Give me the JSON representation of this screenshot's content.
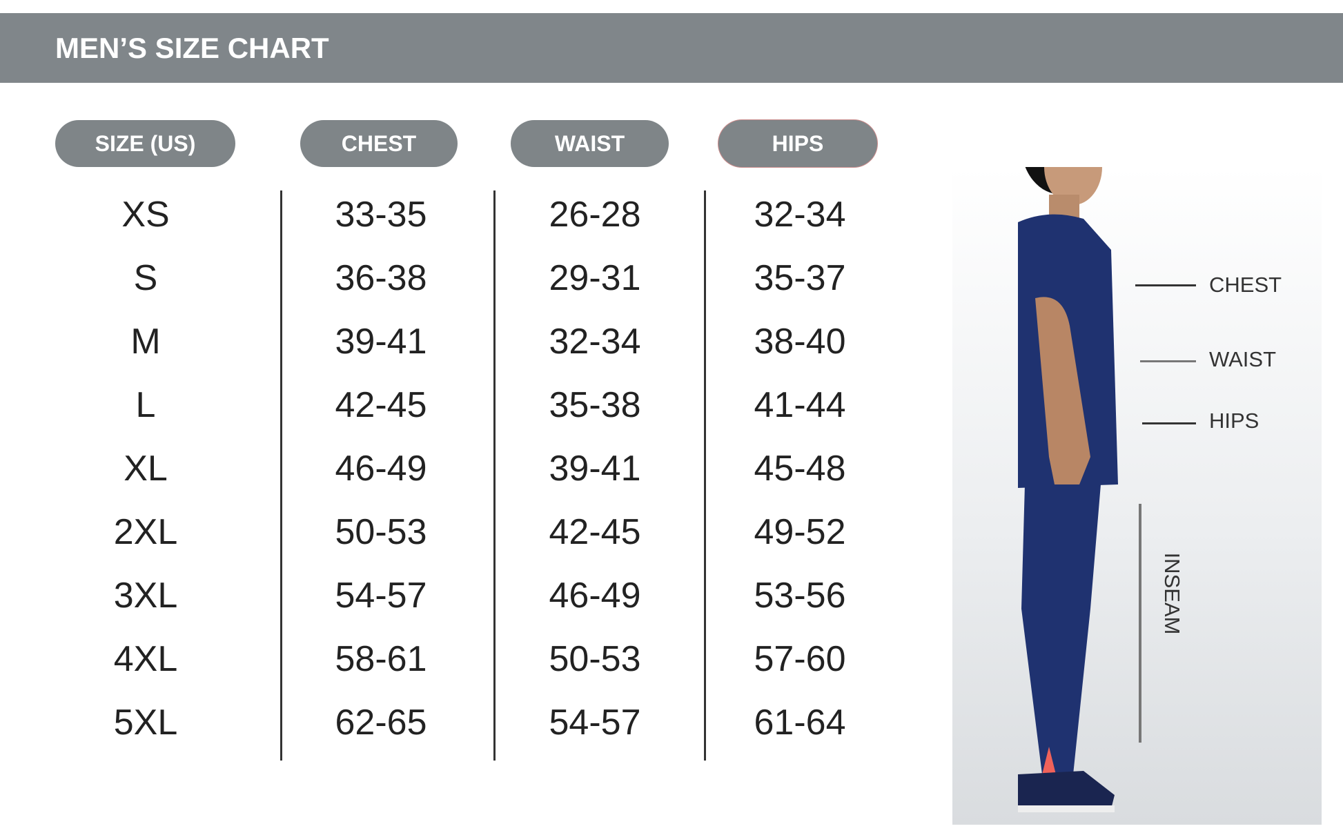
{
  "title": "MEN’S SIZE CHART",
  "columns": [
    "SIZE (US)",
    "CHEST",
    "WAIST",
    "HIPS"
  ],
  "rows": [
    {
      "size": "XS",
      "chest": "33-35",
      "waist": "26-28",
      "hips": "32-34"
    },
    {
      "size": "S",
      "chest": "36-38",
      "waist": "29-31",
      "hips": "35-37"
    },
    {
      "size": "M",
      "chest": "39-41",
      "waist": "32-34",
      "hips": "38-40"
    },
    {
      "size": "L",
      "chest": "42-45",
      "waist": "35-38",
      "hips": "41-44"
    },
    {
      "size": "XL",
      "chest": "46-49",
      "waist": "39-41",
      "hips": "45-48"
    },
    {
      "size": "2XL",
      "chest": "50-53",
      "waist": "42-45",
      "hips": "49-52"
    },
    {
      "size": "3XL",
      "chest": "54-57",
      "waist": "46-49",
      "hips": "53-56"
    },
    {
      "size": "4XL",
      "chest": "58-61",
      "waist": "50-53",
      "hips": "57-60"
    },
    {
      "size": "5XL",
      "chest": "62-65",
      "waist": "54-57",
      "hips": "61-64"
    }
  ],
  "figure": {
    "labels": {
      "chest": "CHEST",
      "waist": "WAIST",
      "hips": "HIPS",
      "inseam": "INSEAM"
    }
  },
  "colors": {
    "header": "#80868a",
    "pill": "#7f8588",
    "garment": "#1f3270"
  }
}
